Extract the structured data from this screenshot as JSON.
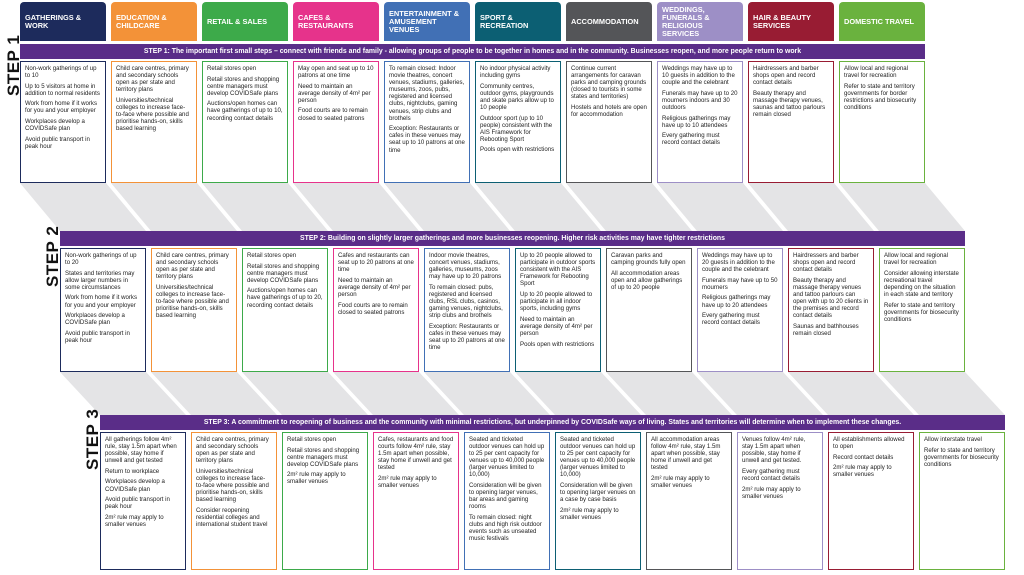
{
  "banner_color": "#5a2d88",
  "connector_color": "#e4e4e6",
  "categories": [
    {
      "label": "GATHERINGS & WORK",
      "color": "#1d2b5c"
    },
    {
      "label": "EDUCATION & CHILDCARE",
      "color": "#f39238"
    },
    {
      "label": "RETAIL & SALES",
      "color": "#3daa4a"
    },
    {
      "label": "CAFES & RESTAURANTS",
      "color": "#e6338b"
    },
    {
      "label": "ENTERTAINMENT & AMUSEMENT VENUES",
      "color": "#4170b5"
    },
    {
      "label": "SPORT & RECREATION",
      "color": "#0c5f73"
    },
    {
      "label": "ACCOMMODATION",
      "color": "#545558"
    },
    {
      "label": "WEDDINGS, FUNERALS & RELIGIOUS SERVICES",
      "color": "#9d8fc6"
    },
    {
      "label": "HAIR & BEAUTY SERVICES",
      "color": "#981c33"
    },
    {
      "label": "DOMESTIC TRAVEL",
      "color": "#6ab23e"
    }
  ],
  "steps": [
    {
      "label": "STEP 1",
      "banner": "STEP 1: The important first small steps – connect with friends and family - allowing groups of people to be together in homes and in the community. Businesses reopen, and more people return to work",
      "cells": [
        [
          "Non-work gatherings of up to 10",
          "Up to 5 visitors at home in addition to normal residents",
          "Work from home if it works for you and your employer",
          "Workplaces develop a COVIDSafe plan",
          "Avoid public transport in peak hour"
        ],
        [
          "Child care centres, primary and secondary schools open as per state and territory plans",
          "Universities/technical colleges to increase face-to-face where possible and prioritise hands-on, skills based learning"
        ],
        [
          "Retail stores open",
          "Retail stores and shopping centre managers must develop COVIDSafe plans",
          "Auctions/open homes can have gatherings of up to 10, recording contact details"
        ],
        [
          "May open and seat up to 10 patrons at one time",
          "Need to maintain an average density of 4m² per person",
          "Food courts are to remain closed to seated patrons"
        ],
        [
          "To remain closed: Indoor movie theatres, concert venues, stadiums, galleries, museums, zoos, pubs, registered and licensed clubs, nightclubs, gaming venues, strip clubs and brothels",
          "Exception: Restaurants or cafes in these venues may seat up to 10 patrons at one time"
        ],
        [
          "No indoor physical activity including gyms",
          "Community centres, outdoor gyms, playgrounds and skate parks allow up to 10 people",
          "Outdoor sport (up to 10 people) consistent with the AIS Framework for Rebooting Sport",
          "Pools open with restrictions"
        ],
        [
          "Continue current arrangements for caravan parks and camping grounds (closed to tourists in some states and territories)",
          "Hostels and hotels are open for accommodation"
        ],
        [
          "Weddings may have up to 10 guests in addition to the couple and the celebrant",
          "Funerals may have up to 20 mourners indoors and 30 outdoors",
          "Religious gatherings may have up to 10 attendees",
          "Every gathering must record contact details"
        ],
        [
          "Hairdressers and barber shops open and record contact details",
          "Beauty therapy and massage therapy venues, saunas and tattoo parlours remain closed"
        ],
        [
          "Allow local and regional travel for recreation",
          "Refer to state and territory governments for border restrictions and biosecurity conditions"
        ]
      ]
    },
    {
      "label": "STEP 2",
      "banner": "STEP 2: Building on slightly larger gatherings and more businesses reopening. Higher risk activities may have tighter restrictions",
      "cells": [
        [
          "Non-work gatherings of up to 20",
          "States and territories may allow larger numbers in some circumstances",
          "Work from home if it works for you and your employer",
          "Workplaces develop a COVIDSafe plan",
          "Avoid public transport in peak hour"
        ],
        [
          "Child care centres, primary and secondary schools open as per state and territory plans",
          "Universities/technical colleges to increase face-to-face where possible and prioritise hands-on, skills based learning"
        ],
        [
          "Retail stores open",
          "Retail stores and shopping centre managers must develop COVIDSafe plans",
          "Auctions/open homes can have gatherings of up to 20, recording contact details"
        ],
        [
          "Cafes and restaurants can seat up to 20 patrons at one time",
          "Need to maintain an average density of 4m² per person",
          "Food courts are to remain closed to seated patrons"
        ],
        [
          "Indoor movie theatres, concert venues, stadiums, galleries, museums, zoos may have up to 20 patrons",
          "To remain closed: pubs, registered and licensed clubs, RSL clubs, casinos, gaming venues, nightclubs, strip clubs and brothels",
          "Exception: Restaurants or cafes in these venues may seat up to 20 patrons at one time"
        ],
        [
          "Up to 20 people allowed to participate in outdoor sports consistent with the AIS Framework for Rebooting Sport",
          "Up to 20 people allowed to participate in all indoor sports, including gyms",
          "Need to maintain an average density of 4m² per person",
          "Pools open with restrictions"
        ],
        [
          "Caravan parks and camping grounds fully open",
          "All accommodation areas open and allow gatherings of up to 20 people"
        ],
        [
          "Weddings may have up to 20 guests in addition to the couple and the celebrant",
          "Funerals may have up to 50 mourners",
          "Religious gatherings may have up to 20 attendees",
          "Every gathering must record contact details"
        ],
        [
          "Hairdressers and barber shops open and record contact details",
          "Beauty therapy and massage therapy venues and tattoo parlours can open with up to 20 clients in the premises and record contact details",
          "Saunas and bathhouses remain closed"
        ],
        [
          "Allow local and regional travel for recreation",
          "Consider allowing interstate recreational travel depending on the situation in each state and territory",
          "Refer to state and territory governments for biosecurity conditions"
        ]
      ]
    },
    {
      "label": "STEP 3",
      "banner": "STEP 3: A commitment to reopening of business and the community with minimal restrictions, but underpinned by COVIDSafe ways of living. States and territories will determine when to implement these changes.",
      "cells": [
        [
          "All gatherings follow 4m² rule, stay 1.5m apart when possible, stay home if unwell and get tested",
          "Return to workplace",
          "Workplaces develop a COVIDSafe plan",
          "Avoid public transport in peak hour",
          "2m² rule may apply to smaller venues"
        ],
        [
          "Child care centres, primary and secondary schools open as per state and territory plans",
          "Universities/technical colleges to increase face-to-face where possible and prioritise hands-on, skills based learning",
          "Consider reopening residential colleges and international student travel"
        ],
        [
          "Retail stores open",
          "Retail stores and shopping centre managers must develop COVIDSafe plans",
          "2m² rule may apply to smaller venues"
        ],
        [
          "Cafes, restaurants and food courts follow 4m² rule, stay 1.5m apart when possible, stay home if unwell and get tested",
          "2m² rule may apply to smaller venues"
        ],
        [
          "Seated and ticketed outdoor venues can hold up to 25 per cent capacity for venues up to 40,000 people (larger venues limited to 10,000)",
          "Consideration will be given to opening larger venues, bar areas and gaming rooms",
          "To remain closed: night clubs and high risk outdoor events such as unseated music festivals"
        ],
        [
          "Seated and ticketed outdoor venues can hold up to 25 per cent capacity for venues up to 40,000 people (larger venues limited to 10,000)",
          "Consideration will be given to opening larger venues on a case by case basis",
          "2m² rule may apply to smaller venues"
        ],
        [
          "All accommodation areas follow 4m² rule, stay 1.5m apart when possible, stay home if unwell and get tested",
          "2m² rule may apply to smaller venues"
        ],
        [
          "Venues follow 4m² rule, stay 1.5m apart when possible, stay home if unwell and get tested.",
          "Every gathering must record contact details",
          "2m² rule may apply to smaller venues"
        ],
        [
          "All establishments allowed to open",
          "Record contact details",
          "2m² rule may apply to smaller venues"
        ],
        [
          "Allow interstate travel",
          "Refer to state and territory governments for biosecurity conditions"
        ]
      ]
    }
  ]
}
